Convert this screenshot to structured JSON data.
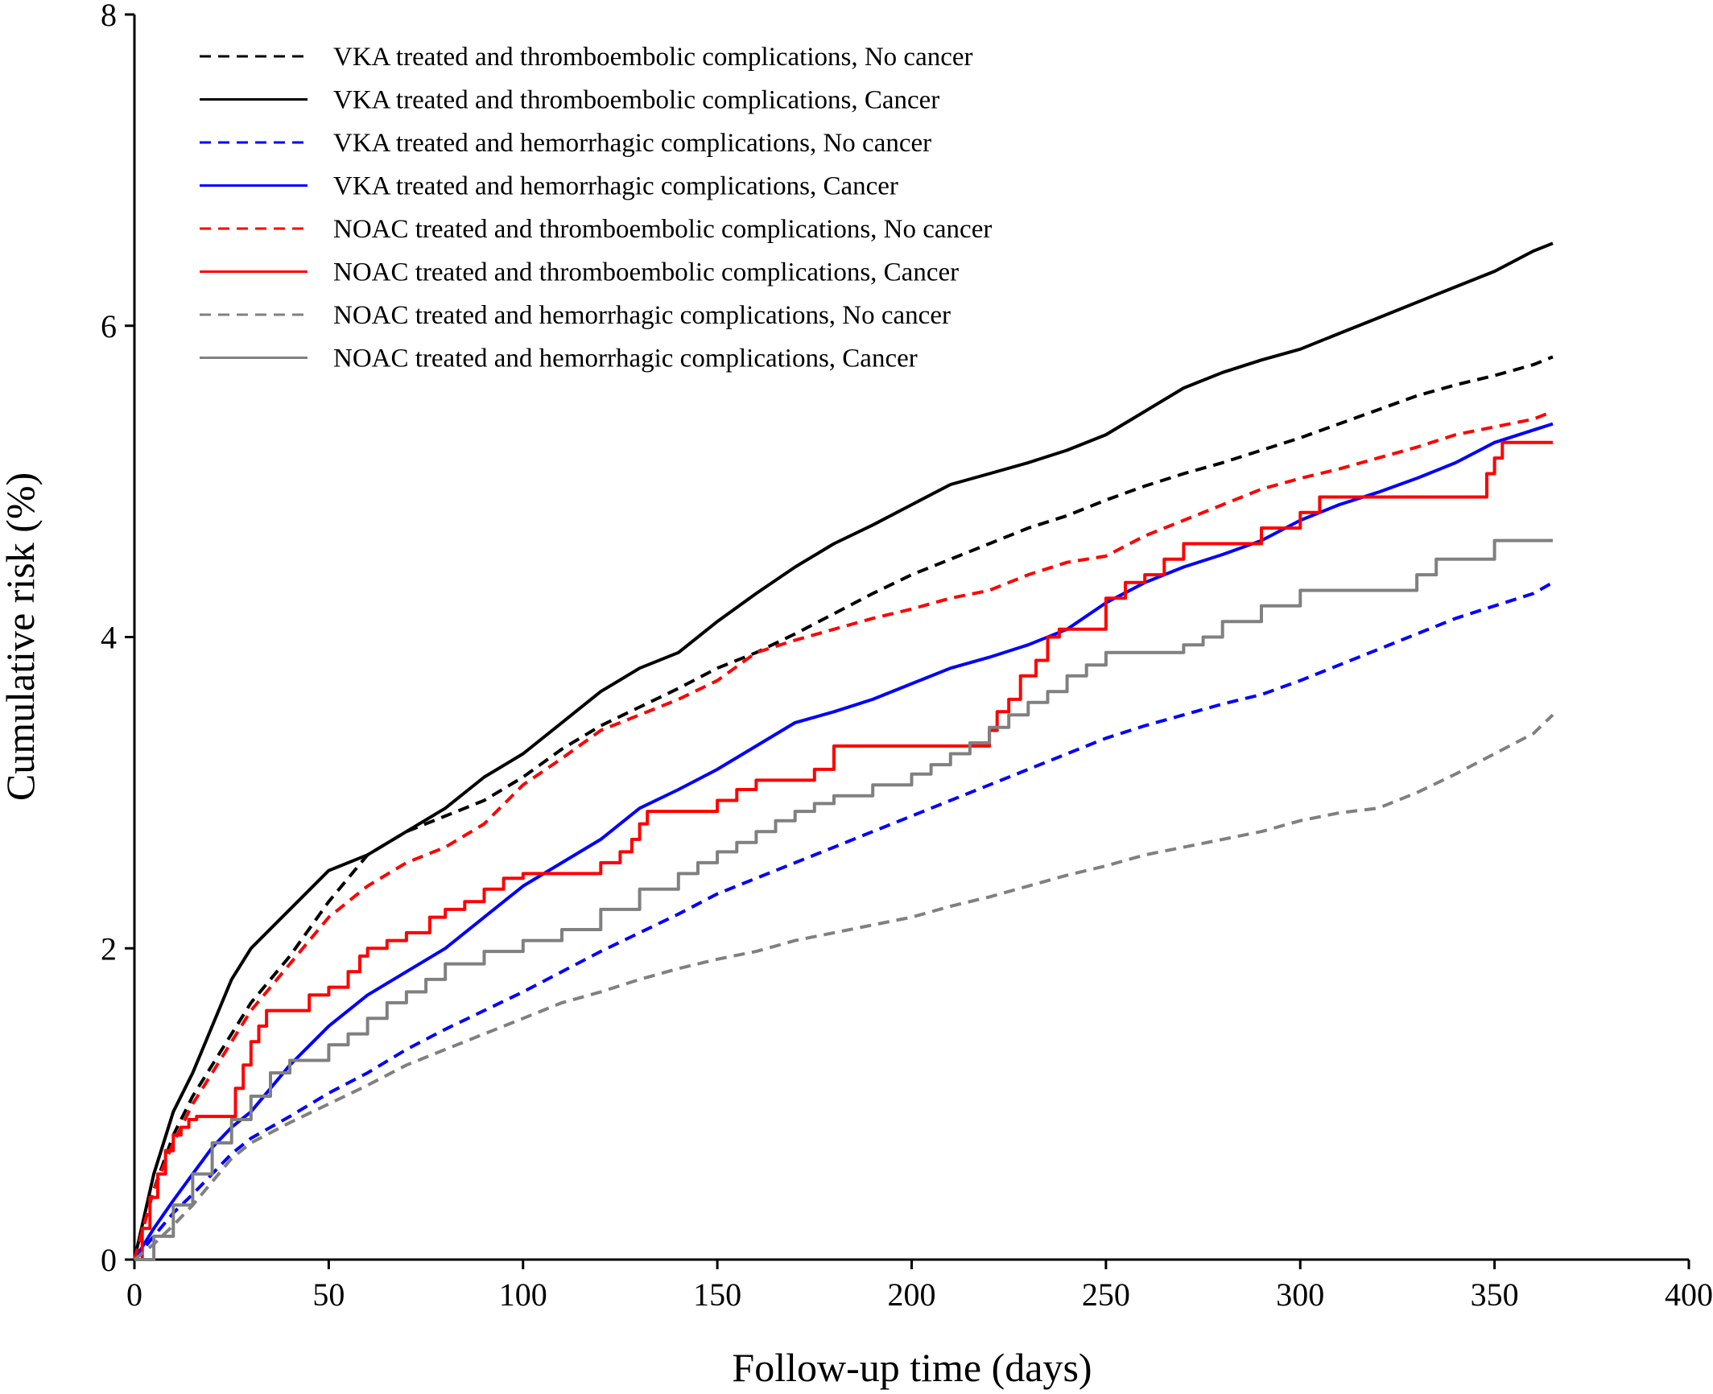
{
  "chart_data": {
    "type": "line",
    "title": "",
    "xlabel": "Follow-up time (days)",
    "ylabel": "Cumulative risk (%)",
    "xlim": [
      0,
      400
    ],
    "ylim": [
      0,
      8
    ],
    "xticks": [
      0,
      50,
      100,
      150,
      200,
      250,
      300,
      350,
      400
    ],
    "yticks": [
      0,
      2,
      4,
      6,
      8
    ],
    "grid": false,
    "legend_position": "top-left",
    "series": [
      {
        "name": "VKA treated and thromboembolic complications, No cancer",
        "color": "#000000",
        "dash": "dashed",
        "step": false,
        "x": [
          0,
          5,
          10,
          15,
          20,
          25,
          30,
          40,
          50,
          60,
          70,
          80,
          90,
          100,
          110,
          120,
          130,
          140,
          150,
          160,
          170,
          180,
          190,
          200,
          210,
          220,
          230,
          240,
          250,
          260,
          270,
          280,
          290,
          300,
          310,
          320,
          330,
          340,
          350,
          360,
          365
        ],
        "y": [
          0,
          0.45,
          0.8,
          1.05,
          1.25,
          1.45,
          1.65,
          1.95,
          2.3,
          2.6,
          2.75,
          2.85,
          2.95,
          3.1,
          3.28,
          3.43,
          3.55,
          3.67,
          3.8,
          3.9,
          4.02,
          4.15,
          4.28,
          4.4,
          4.5,
          4.6,
          4.7,
          4.78,
          4.88,
          4.97,
          5.05,
          5.12,
          5.2,
          5.28,
          5.37,
          5.46,
          5.55,
          5.62,
          5.68,
          5.75,
          5.8
        ]
      },
      {
        "name": "VKA treated and thromboembolic complications, Cancer",
        "color": "#000000",
        "dash": "solid",
        "step": false,
        "x": [
          0,
          5,
          10,
          15,
          20,
          25,
          30,
          40,
          50,
          60,
          70,
          80,
          90,
          100,
          110,
          120,
          130,
          140,
          150,
          160,
          170,
          180,
          190,
          200,
          210,
          220,
          230,
          240,
          250,
          260,
          270,
          280,
          290,
          300,
          310,
          320,
          330,
          340,
          350,
          360,
          365
        ],
        "y": [
          0,
          0.55,
          0.95,
          1.2,
          1.5,
          1.8,
          2.0,
          2.25,
          2.5,
          2.6,
          2.75,
          2.9,
          3.1,
          3.25,
          3.45,
          3.65,
          3.8,
          3.9,
          4.1,
          4.28,
          4.45,
          4.6,
          4.72,
          4.85,
          4.98,
          5.05,
          5.12,
          5.2,
          5.3,
          5.45,
          5.6,
          5.7,
          5.78,
          5.85,
          5.95,
          6.05,
          6.15,
          6.25,
          6.35,
          6.48,
          6.53
        ]
      },
      {
        "name": "VKA treated and hemorrhagic complications, No cancer",
        "color": "#0000ff",
        "dash": "dashed",
        "step": false,
        "x": [
          0,
          5,
          10,
          15,
          20,
          25,
          30,
          40,
          50,
          60,
          70,
          80,
          90,
          100,
          110,
          120,
          130,
          140,
          150,
          160,
          170,
          180,
          190,
          200,
          210,
          220,
          230,
          240,
          250,
          260,
          270,
          280,
          290,
          300,
          310,
          320,
          330,
          340,
          350,
          360,
          365
        ],
        "y": [
          0,
          0.15,
          0.3,
          0.42,
          0.55,
          0.68,
          0.78,
          0.92,
          1.07,
          1.2,
          1.35,
          1.48,
          1.6,
          1.72,
          1.85,
          1.98,
          2.1,
          2.22,
          2.35,
          2.45,
          2.55,
          2.65,
          2.75,
          2.85,
          2.95,
          3.05,
          3.15,
          3.25,
          3.35,
          3.43,
          3.5,
          3.57,
          3.63,
          3.72,
          3.82,
          3.92,
          4.02,
          4.12,
          4.2,
          4.28,
          4.35
        ]
      },
      {
        "name": "VKA treated and hemorrhagic complications, Cancer",
        "color": "#0000ff",
        "dash": "solid",
        "step": false,
        "x": [
          0,
          5,
          10,
          15,
          20,
          25,
          30,
          40,
          50,
          60,
          70,
          80,
          90,
          100,
          110,
          120,
          130,
          140,
          150,
          160,
          170,
          180,
          190,
          200,
          210,
          220,
          230,
          240,
          250,
          260,
          270,
          280,
          290,
          300,
          310,
          320,
          330,
          340,
          350,
          360,
          365
        ],
        "y": [
          0,
          0.2,
          0.38,
          0.55,
          0.72,
          0.85,
          0.95,
          1.25,
          1.5,
          1.7,
          1.85,
          2.0,
          2.2,
          2.4,
          2.55,
          2.7,
          2.9,
          3.02,
          3.15,
          3.3,
          3.45,
          3.52,
          3.6,
          3.7,
          3.8,
          3.87,
          3.95,
          4.05,
          4.22,
          4.35,
          4.45,
          4.53,
          4.62,
          4.75,
          4.85,
          4.93,
          5.02,
          5.12,
          5.25,
          5.33,
          5.37
        ]
      },
      {
        "name": "NOAC treated and thromboembolic complications, No cancer",
        "color": "#ff0000",
        "dash": "dashed",
        "step": false,
        "x": [
          0,
          5,
          10,
          15,
          20,
          25,
          30,
          40,
          50,
          60,
          70,
          80,
          90,
          100,
          110,
          120,
          130,
          140,
          150,
          160,
          170,
          180,
          190,
          200,
          210,
          220,
          230,
          240,
          250,
          260,
          270,
          280,
          290,
          300,
          310,
          320,
          330,
          340,
          350,
          360,
          365
        ],
        "y": [
          0,
          0.45,
          0.75,
          1.0,
          1.2,
          1.4,
          1.6,
          1.9,
          2.2,
          2.4,
          2.55,
          2.65,
          2.8,
          3.05,
          3.22,
          3.4,
          3.5,
          3.6,
          3.72,
          3.9,
          3.98,
          4.05,
          4.12,
          4.18,
          4.25,
          4.3,
          4.4,
          4.48,
          4.52,
          4.65,
          4.75,
          4.85,
          4.95,
          5.02,
          5.08,
          5.15,
          5.22,
          5.3,
          5.35,
          5.4,
          5.45
        ]
      },
      {
        "name": "NOAC treated and thromboembolic complications, Cancer",
        "color": "#ff0000",
        "dash": "solid",
        "step": true,
        "x": [
          0,
          2,
          4,
          6,
          8,
          10,
          12,
          14,
          16,
          20,
          24,
          26,
          28,
          30,
          32,
          34,
          36,
          40,
          45,
          50,
          55,
          58,
          60,
          65,
          70,
          76,
          80,
          85,
          90,
          95,
          100,
          110,
          115,
          120,
          125,
          128,
          130,
          132,
          134,
          140,
          145,
          150,
          155,
          160,
          165,
          170,
          175,
          180,
          185,
          190,
          200,
          210,
          215,
          218,
          220,
          222,
          225,
          228,
          232,
          235,
          238,
          240,
          245,
          250,
          255,
          260,
          265,
          270,
          275,
          280,
          290,
          300,
          305,
          310,
          320,
          330,
          340,
          345,
          348,
          350,
          352,
          355,
          360,
          365
        ],
        "y": [
          0,
          0.2,
          0.4,
          0.55,
          0.7,
          0.8,
          0.85,
          0.9,
          0.92,
          0.92,
          0.92,
          1.1,
          1.25,
          1.4,
          1.5,
          1.6,
          1.6,
          1.6,
          1.7,
          1.75,
          1.85,
          1.95,
          2.0,
          2.05,
          2.1,
          2.2,
          2.25,
          2.3,
          2.38,
          2.45,
          2.48,
          2.48,
          2.48,
          2.55,
          2.62,
          2.7,
          2.8,
          2.88,
          2.88,
          2.88,
          2.88,
          2.95,
          3.02,
          3.08,
          3.08,
          3.08,
          3.15,
          3.3,
          3.3,
          3.3,
          3.3,
          3.3,
          3.3,
          3.3,
          3.4,
          3.52,
          3.6,
          3.75,
          3.85,
          4.0,
          4.05,
          4.05,
          4.05,
          4.25,
          4.35,
          4.4,
          4.5,
          4.6,
          4.6,
          4.6,
          4.7,
          4.8,
          4.9,
          4.9,
          4.9,
          4.9,
          4.9,
          4.9,
          5.05,
          5.15,
          5.25,
          5.25,
          5.25,
          5.25
        ]
      },
      {
        "name": "NOAC treated and hemorrhagic complications, No cancer",
        "color": "#808080",
        "dash": "dashed",
        "step": false,
        "x": [
          0,
          5,
          10,
          15,
          20,
          25,
          30,
          40,
          50,
          60,
          70,
          80,
          90,
          100,
          110,
          120,
          130,
          140,
          150,
          160,
          170,
          180,
          190,
          200,
          210,
          220,
          230,
          240,
          250,
          260,
          270,
          280,
          290,
          300,
          310,
          320,
          330,
          340,
          350,
          360,
          365
        ],
        "y": [
          0,
          0.1,
          0.22,
          0.35,
          0.5,
          0.65,
          0.75,
          0.88,
          1.0,
          1.12,
          1.25,
          1.35,
          1.45,
          1.55,
          1.65,
          1.72,
          1.8,
          1.87,
          1.93,
          1.98,
          2.05,
          2.1,
          2.15,
          2.2,
          2.27,
          2.33,
          2.4,
          2.47,
          2.53,
          2.6,
          2.65,
          2.7,
          2.75,
          2.82,
          2.87,
          2.9,
          3.0,
          3.12,
          3.25,
          3.38,
          3.5
        ]
      },
      {
        "name": "NOAC treated and hemorrhagic complications, Cancer",
        "color": "#808080",
        "dash": "solid",
        "step": true,
        "x": [
          0,
          5,
          10,
          15,
          20,
          25,
          30,
          35,
          40,
          50,
          55,
          60,
          65,
          70,
          75,
          80,
          90,
          100,
          110,
          120,
          130,
          140,
          145,
          150,
          155,
          160,
          165,
          170,
          175,
          180,
          190,
          200,
          205,
          210,
          215,
          220,
          225,
          230,
          235,
          240,
          245,
          250,
          255,
          260,
          270,
          275,
          280,
          290,
          300,
          310,
          320,
          330,
          335,
          340,
          350,
          360,
          365
        ],
        "y": [
          0,
          0.15,
          0.35,
          0.55,
          0.75,
          0.9,
          1.05,
          1.2,
          1.28,
          1.38,
          1.45,
          1.55,
          1.65,
          1.72,
          1.8,
          1.9,
          1.98,
          2.05,
          2.12,
          2.25,
          2.38,
          2.48,
          2.55,
          2.62,
          2.68,
          2.75,
          2.82,
          2.88,
          2.93,
          2.98,
          3.05,
          3.12,
          3.18,
          3.25,
          3.32,
          3.42,
          3.5,
          3.58,
          3.65,
          3.75,
          3.82,
          3.9,
          3.9,
          3.9,
          3.95,
          4.0,
          4.1,
          4.2,
          4.3,
          4.3,
          4.3,
          4.4,
          4.5,
          4.5,
          4.62,
          4.62,
          4.62
        ]
      }
    ]
  }
}
